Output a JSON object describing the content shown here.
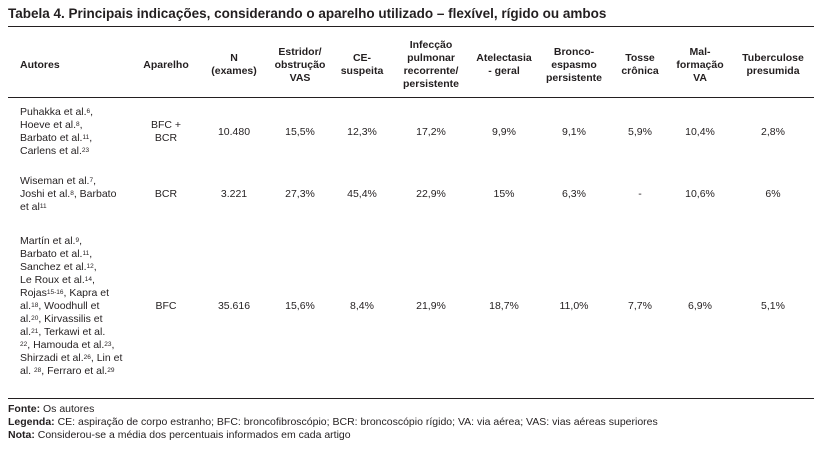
{
  "title": "Tabela 4. Principais indicações, considerando o aparelho utilizado – flexível, rígido ou ambos",
  "headers": [
    [
      "Autores"
    ],
    [
      "Aparelho"
    ],
    [
      "N",
      "(exames)"
    ],
    [
      "Estridor/",
      "obstrução",
      "VAS"
    ],
    [
      "CE-",
      "suspeita"
    ],
    [
      "Infecção",
      "pulmonar",
      "recorrente/",
      "persistente"
    ],
    [
      "Atelectasia",
      "- geral"
    ],
    [
      "Bronco-",
      "espasmo",
      "persistente"
    ],
    [
      "Tosse",
      "crônica"
    ],
    [
      "Mal-",
      "formação",
      "VA"
    ],
    [
      "Tuberculose",
      "presumida"
    ]
  ],
  "rows": [
    {
      "authors": [
        {
          "text": "Puhakka et al.",
          "sup": "6",
          "after": ","
        },
        {
          "text": "Hoeve et al.",
          "sup": "8",
          "after": ","
        },
        {
          "text": "Barbato et al.",
          "sup": "11",
          "after": ","
        },
        {
          "text": "Carlens et al.",
          "sup": "23",
          "after": ""
        }
      ],
      "aparelho": [
        "BFC +",
        "BCR"
      ],
      "cells": [
        "10.480",
        "15,5%",
        "12,3%",
        "17,2%",
        "9,9%",
        "9,1%",
        "5,9%",
        "10,4%",
        "2,8%"
      ]
    },
    {
      "authors": [
        {
          "text": "Wiseman et al.",
          "sup": "7",
          "after": ","
        },
        {
          "text": "Joshi et al.",
          "sup": "8",
          "after": ", Barbato"
        },
        {
          "text": "et al",
          "sup": "11",
          "after": ""
        }
      ],
      "aparelho": [
        "BCR"
      ],
      "cells": [
        "3.221",
        "27,3%",
        "45,4%",
        "22,9%",
        "15%",
        "6,3%",
        "-",
        "10,6%",
        "6%"
      ]
    },
    {
      "authors": [
        {
          "text": "Martín et al.",
          "sup": "9",
          "after": ","
        },
        {
          "text": "Barbato et al.",
          "sup": "11",
          "after": ","
        },
        {
          "text": "Sanchez et al.",
          "sup": "12",
          "after": ","
        },
        {
          "text": "Le Roux et al.",
          "sup": "14",
          "after": ","
        },
        {
          "text": "Rojas",
          "sup": "15-16",
          "after": ", Kapra et"
        },
        {
          "text": "al.",
          "sup": "18",
          "after": ", Woodhull et"
        },
        {
          "text": "al.",
          "sup": "20",
          "after": ", Kirvassilis et"
        },
        {
          "text": "al.",
          "sup": "21",
          "after": ", Terkawi et al."
        },
        {
          "text": "",
          "sup": "22",
          "after": ", Hamouda et al.",
          "sup2": "23",
          "after2": ","
        },
        {
          "text": "Shirzadi et al.",
          "sup": "26",
          "after": ", Lin et"
        },
        {
          "text": "al. ",
          "sup": "28",
          "after": ", Ferraro et al.",
          "sup2": "29",
          "after2": ""
        }
      ],
      "aparelho": [
        "BFC"
      ],
      "cells": [
        "35.616",
        "15,6%",
        "8,4%",
        "21,9%",
        "18,7%",
        "11,0%",
        "7,7%",
        "6,9%",
        "5,1%"
      ]
    }
  ],
  "footer": {
    "fonte_label": "Fonte:",
    "fonte_text": " Os autores",
    "legenda_label": "Legenda:",
    "legenda_text": " CE: aspiração de corpo estranho; BFC: broncofibroscópio; BCR: broncoscópio rígido; VA: via aérea; VAS: vias aéreas superiores",
    "nota_label": "Nota:",
    "nota_text": " Considerou-se a média dos percentuais informados em cada artigo"
  }
}
